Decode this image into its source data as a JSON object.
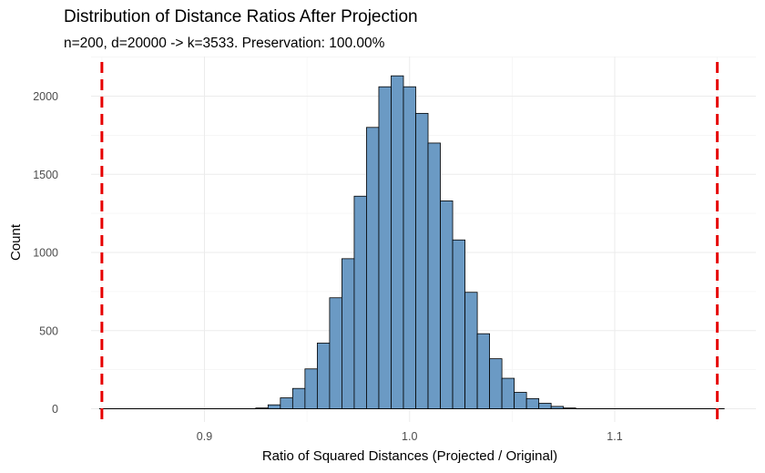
{
  "chart_data": {
    "type": "bar",
    "title": "Distribution of Distance Ratios After Projection",
    "subtitle": "n=200, d=20000 -> k=3533. Preservation: 100.00%",
    "xlabel": "Ratio of Squared Distances (Projected / Original)",
    "ylabel": "Count",
    "xlim": [
      0.85,
      1.15
    ],
    "ylim": [
      0,
      2250
    ],
    "x_ticks": [
      0.9,
      1.0,
      1.1
    ],
    "x_tick_labels": [
      "0.9",
      "1.0",
      "1.1"
    ],
    "y_ticks": [
      0,
      500,
      1000,
      1500,
      2000
    ],
    "y_tick_labels": [
      "0",
      "500",
      "1000",
      "1500",
      "2000"
    ],
    "bin_width": 0.006,
    "bins": [
      {
        "x": 0.928,
        "count": 5
      },
      {
        "x": 0.934,
        "count": 25
      },
      {
        "x": 0.94,
        "count": 70
      },
      {
        "x": 0.946,
        "count": 130
      },
      {
        "x": 0.952,
        "count": 255
      },
      {
        "x": 0.958,
        "count": 420
      },
      {
        "x": 0.964,
        "count": 710
      },
      {
        "x": 0.97,
        "count": 960
      },
      {
        "x": 0.976,
        "count": 1360
      },
      {
        "x": 0.982,
        "count": 1800
      },
      {
        "x": 0.988,
        "count": 2060
      },
      {
        "x": 0.994,
        "count": 2130
      },
      {
        "x": 1.0,
        "count": 2060
      },
      {
        "x": 1.006,
        "count": 1890
      },
      {
        "x": 1.012,
        "count": 1700
      },
      {
        "x": 1.018,
        "count": 1330
      },
      {
        "x": 1.024,
        "count": 1080
      },
      {
        "x": 1.03,
        "count": 745
      },
      {
        "x": 1.036,
        "count": 480
      },
      {
        "x": 1.042,
        "count": 320
      },
      {
        "x": 1.048,
        "count": 195
      },
      {
        "x": 1.054,
        "count": 105
      },
      {
        "x": 1.06,
        "count": 65
      },
      {
        "x": 1.066,
        "count": 35
      },
      {
        "x": 1.072,
        "count": 15
      },
      {
        "x": 1.078,
        "count": 5
      }
    ],
    "reference_lines": [
      {
        "x": 0.85,
        "color": "#e60000",
        "style": "dashed"
      },
      {
        "x": 1.15,
        "color": "#e60000",
        "style": "dashed"
      }
    ],
    "bar_fill": "#6b9ac4",
    "bar_stroke": "#000000",
    "grid": true,
    "legend": "none"
  }
}
